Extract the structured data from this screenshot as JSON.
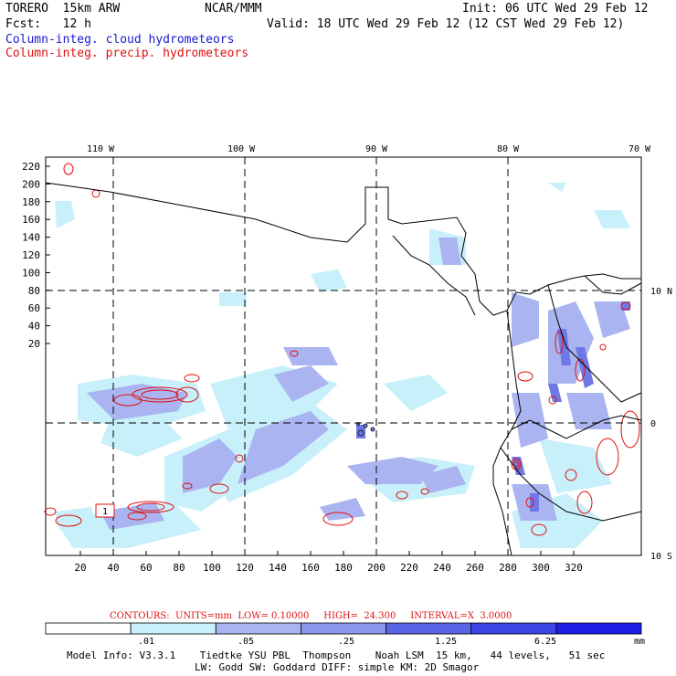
{
  "header": {
    "model": "TORERO  15km ARW",
    "center": "NCAR/MMM",
    "init": "Init: 06 UTC Wed 29 Feb 12",
    "fcst": "Fcst:   12 h",
    "valid": "Valid: 18 UTC Wed 29 Feb 12 (12 CST Wed 29 Feb 12)",
    "field_cloud": "Column-integ. cloud hydrometeors",
    "field_precip": "Column-integ. precip. hydrometeors"
  },
  "map": {
    "lon_labels_top": [
      "110 W",
      "100 W",
      "90 W",
      "80 W",
      "70 W"
    ],
    "lat_labels_right": [
      "10 N",
      "0",
      "10 S"
    ],
    "y_ticks": [
      "220",
      "200",
      "180",
      "160",
      "140",
      "120",
      "100",
      "80",
      "60",
      "40",
      "20"
    ],
    "x_ticks": [
      "20",
      "40",
      "60",
      "80",
      "100",
      "120",
      "140",
      "160",
      "180",
      "200",
      "220",
      "240",
      "260",
      "280",
      "300",
      "320"
    ],
    "box_label": "1",
    "colors": {
      "cloud_light": "#c8f0fa",
      "cloud_mid": "#aab4f0",
      "cloud_dark": "#6e78e6",
      "precip_contour": "#e01010",
      "coastline": "#000000"
    }
  },
  "contour_info": {
    "text": "CONTOURS:  UNITS=mm  LOW= 0.10000     HIGH=  24.300     INTERVAL=X  3.0000"
  },
  "colorbar": {
    "labels": [
      ".01",
      ".05",
      ".25",
      "1.25",
      "6.25"
    ],
    "unit": "mm",
    "colors": [
      "#ffffff",
      "#c8f0fa",
      "#aab4f0",
      "#8c96ec",
      "#5a64e6",
      "#3c46e6",
      "#1e1ee6"
    ]
  },
  "footer": {
    "line1": "Model Info: V3.3.1    Tiedtke YSU PBL  Thompson    Noah LSM  15 km,   44 levels,   51 sec",
    "line2": "LW: Godd SW: Goddard DIFF: simple KM: 2D Smagor"
  }
}
